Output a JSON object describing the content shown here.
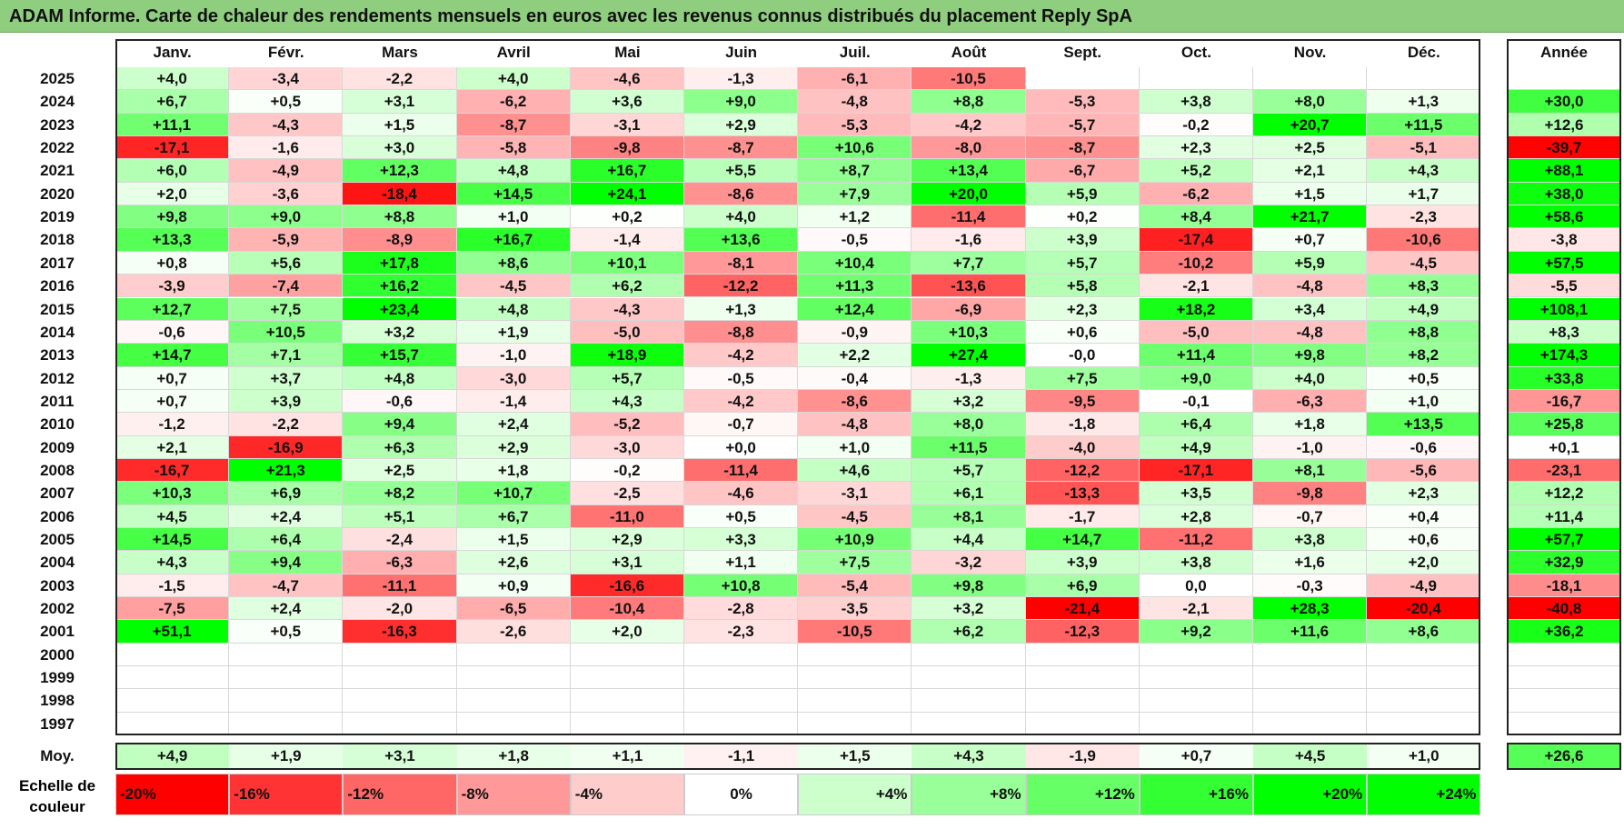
{
  "title": "ADAM Informe. Carte de chaleur des rendements mensuels en euros avec les revenus connus distribués du placement Reply SpA",
  "months": [
    "Janv.",
    "Févr.",
    "Mars",
    "Avril",
    "Mai",
    "Juin",
    "Juil.",
    "Août",
    "Sept.",
    "Oct.",
    "Nov.",
    "Déc."
  ],
  "year_header": "Année",
  "avg_label": "Moy.",
  "scale_label": "Echelle de couleur",
  "colors": {
    "neg_max": "#ff0000",
    "pos_max": "#00ff00",
    "zero": "#ffffff",
    "header_bg": "#8fce7f"
  },
  "chart_data": {
    "type": "heatmap",
    "title": "ADAM Informe. Carte de chaleur des rendements mensuels en euros avec les revenus connus distribués du placement Reply SpA",
    "columns": [
      "Janv.",
      "Févr.",
      "Mars",
      "Avril",
      "Mai",
      "Juin",
      "Juil.",
      "Août",
      "Sept.",
      "Oct.",
      "Nov.",
      "Déc."
    ],
    "rows": [
      {
        "year": "2025",
        "values": [
          "+4,0",
          "-3,4",
          "-2,2",
          "+4,0",
          "-4,6",
          "-1,3",
          "-6,1",
          "-10,5",
          "",
          "",
          "",
          ""
        ],
        "total": ""
      },
      {
        "year": "2024",
        "values": [
          "+6,7",
          "+0,5",
          "+3,1",
          "-6,2",
          "+3,6",
          "+9,0",
          "-4,8",
          "+8,8",
          "-5,3",
          "+3,8",
          "+8,0",
          "+1,3"
        ],
        "total": "+30,0"
      },
      {
        "year": "2023",
        "values": [
          "+11,1",
          "-4,3",
          "+1,5",
          "-8,7",
          "-3,1",
          "+2,9",
          "-5,3",
          "-4,2",
          "-5,7",
          "-0,2",
          "+20,7",
          "+11,5"
        ],
        "total": "+12,6"
      },
      {
        "year": "2022",
        "values": [
          "-17,1",
          "-1,6",
          "+3,0",
          "-5,8",
          "-9,8",
          "-8,7",
          "+10,6",
          "-8,0",
          "-8,7",
          "+2,3",
          "+2,5",
          "-5,1"
        ],
        "total": "-39,7"
      },
      {
        "year": "2021",
        "values": [
          "+6,0",
          "-4,9",
          "+12,3",
          "+4,8",
          "+16,7",
          "+5,5",
          "+8,7",
          "+13,4",
          "-6,7",
          "+5,2",
          "+2,1",
          "+4,3"
        ],
        "total": "+88,1"
      },
      {
        "year": "2020",
        "values": [
          "+2,0",
          "-3,6",
          "-18,4",
          "+14,5",
          "+24,1",
          "-8,6",
          "+7,9",
          "+20,0",
          "+5,9",
          "-6,2",
          "+1,5",
          "+1,7"
        ],
        "total": "+38,0"
      },
      {
        "year": "2019",
        "values": [
          "+9,8",
          "+9,0",
          "+8,8",
          "+1,0",
          "+0,2",
          "+4,0",
          "+1,2",
          "-11,4",
          "+0,2",
          "+8,4",
          "+21,7",
          "-2,3"
        ],
        "total": "+58,6"
      },
      {
        "year": "2018",
        "values": [
          "+13,3",
          "-5,9",
          "-8,9",
          "+16,7",
          "-1,4",
          "+13,6",
          "-0,5",
          "-1,6",
          "+3,9",
          "-17,4",
          "+0,7",
          "-10,6"
        ],
        "total": "-3,8"
      },
      {
        "year": "2017",
        "values": [
          "+0,8",
          "+5,6",
          "+17,8",
          "+8,6",
          "+10,1",
          "-8,1",
          "+10,4",
          "+7,7",
          "+5,7",
          "-10,2",
          "+5,9",
          "-4,5"
        ],
        "total": "+57,5"
      },
      {
        "year": "2016",
        "values": [
          "-3,9",
          "-7,4",
          "+16,2",
          "-4,5",
          "+6,2",
          "-12,2",
          "+11,3",
          "-13,6",
          "+5,8",
          "-2,1",
          "-4,8",
          "+8,3"
        ],
        "total": "-5,5"
      },
      {
        "year": "2015",
        "values": [
          "+12,7",
          "+7,5",
          "+23,4",
          "+4,8",
          "-4,3",
          "+1,3",
          "+12,4",
          "-6,9",
          "+2,3",
          "+18,2",
          "+3,4",
          "+4,9"
        ],
        "total": "+108,1"
      },
      {
        "year": "2014",
        "values": [
          "-0,6",
          "+10,5",
          "+3,2",
          "+1,9",
          "-5,0",
          "-8,8",
          "-0,9",
          "+10,3",
          "+0,6",
          "-5,0",
          "-4,8",
          "+8,8"
        ],
        "total": "+8,3"
      },
      {
        "year": "2013",
        "values": [
          "+14,7",
          "+7,1",
          "+15,7",
          "-1,0",
          "+18,9",
          "-4,2",
          "+2,2",
          "+27,4",
          "-0,0",
          "+11,4",
          "+9,8",
          "+8,2"
        ],
        "total": "+174,3"
      },
      {
        "year": "2012",
        "values": [
          "+0,7",
          "+3,7",
          "+4,8",
          "-3,0",
          "+5,7",
          "-0,5",
          "-0,4",
          "-1,3",
          "+7,5",
          "+9,0",
          "+4,0",
          "+0,5"
        ],
        "total": "+33,8"
      },
      {
        "year": "2011",
        "values": [
          "+0,7",
          "+3,9",
          "-0,6",
          "-1,4",
          "+4,3",
          "-4,2",
          "-8,6",
          "+3,2",
          "-9,5",
          "-0,1",
          "-6,3",
          "+1,0"
        ],
        "total": "-16,7"
      },
      {
        "year": "2010",
        "values": [
          "-1,2",
          "-2,2",
          "+9,4",
          "+2,4",
          "-5,2",
          "-0,7",
          "-4,8",
          "+8,0",
          "-1,8",
          "+6,4",
          "+1,8",
          "+13,5"
        ],
        "total": "+25,8"
      },
      {
        "year": "2009",
        "values": [
          "+2,1",
          "-16,9",
          "+6,3",
          "+2,9",
          "-3,0",
          "+0,0",
          "+1,0",
          "+11,5",
          "-4,0",
          "+4,9",
          "-1,0",
          "-0,6"
        ],
        "total": "+0,1"
      },
      {
        "year": "2008",
        "values": [
          "-16,7",
          "+21,3",
          "+2,5",
          "+1,8",
          "-0,2",
          "-11,4",
          "+4,6",
          "+5,7",
          "-12,2",
          "-17,1",
          "+8,1",
          "-5,6"
        ],
        "total": "-23,1"
      },
      {
        "year": "2007",
        "values": [
          "+10,3",
          "+6,9",
          "+8,2",
          "+10,7",
          "-2,5",
          "-4,6",
          "-3,1",
          "+6,1",
          "-13,3",
          "+3,5",
          "-9,8",
          "+2,3"
        ],
        "total": "+12,2"
      },
      {
        "year": "2006",
        "values": [
          "+4,5",
          "+2,4",
          "+5,1",
          "+6,7",
          "-11,0",
          "+0,5",
          "-4,5",
          "+8,1",
          "-1,7",
          "+2,8",
          "-0,7",
          "+0,4"
        ],
        "total": "+11,4"
      },
      {
        "year": "2005",
        "values": [
          "+14,5",
          "+6,4",
          "-2,4",
          "+1,5",
          "+2,9",
          "+3,3",
          "+10,9",
          "+4,4",
          "+14,7",
          "-11,2",
          "+3,8",
          "+0,6"
        ],
        "total": "+57,7"
      },
      {
        "year": "2004",
        "values": [
          "+4,3",
          "+9,4",
          "-6,3",
          "+2,6",
          "+3,1",
          "+1,1",
          "+7,5",
          "-3,2",
          "+3,9",
          "+3,8",
          "+1,6",
          "+2,0"
        ],
        "total": "+32,9"
      },
      {
        "year": "2003",
        "values": [
          "-1,5",
          "-4,7",
          "-11,1",
          "+0,9",
          "-16,6",
          "+10,8",
          "-5,4",
          "+9,8",
          "+6,9",
          "0,0",
          "-0,3",
          "-4,9"
        ],
        "total": "-18,1"
      },
      {
        "year": "2002",
        "values": [
          "-7,5",
          "+2,4",
          "-2,0",
          "-6,5",
          "-10,4",
          "-2,8",
          "-3,5",
          "+3,2",
          "-21,4",
          "-2,1",
          "+28,3",
          "-20,4"
        ],
        "total": "-40,8"
      },
      {
        "year": "2001",
        "values": [
          "+51,1",
          "+0,5",
          "-16,3",
          "-2,6",
          "+2,0",
          "-2,3",
          "-10,5",
          "+6,2",
          "-12,3",
          "+9,2",
          "+11,6",
          "+8,6"
        ],
        "total": "+36,2"
      },
      {
        "year": "2000",
        "values": [
          "",
          "",
          "",
          "",
          "",
          "",
          "",
          "",
          "",
          "",
          "",
          ""
        ],
        "total": ""
      },
      {
        "year": "1999",
        "values": [
          "",
          "",
          "",
          "",
          "",
          "",
          "",
          "",
          "",
          "",
          "",
          ""
        ],
        "total": ""
      },
      {
        "year": "1998",
        "values": [
          "",
          "",
          "",
          "",
          "",
          "",
          "",
          "",
          "",
          "",
          "",
          ""
        ],
        "total": ""
      },
      {
        "year": "1997",
        "values": [
          "",
          "",
          "",
          "",
          "",
          "",
          "",
          "",
          "",
          "",
          "",
          ""
        ],
        "total": ""
      }
    ],
    "average": {
      "values": [
        "+4,9",
        "+1,9",
        "+3,1",
        "+1,8",
        "+1,1",
        "-1,1",
        "+1,5",
        "+4,3",
        "-1,9",
        "+0,7",
        "+4,5",
        "+1,0"
      ],
      "total": "+26,6"
    },
    "scale": [
      {
        "label": "-20%",
        "value": -20
      },
      {
        "label": "-16%",
        "value": -16
      },
      {
        "label": "-12%",
        "value": -12
      },
      {
        "label": "-8%",
        "value": -8
      },
      {
        "label": "-4%",
        "value": -4
      },
      {
        "label": "0%",
        "value": 0
      },
      {
        "label": "+4%",
        "value": 4
      },
      {
        "label": "+8%",
        "value": 8
      },
      {
        "label": "+12%",
        "value": 12
      },
      {
        "label": "+16%",
        "value": 16
      },
      {
        "label": "+20%",
        "value": 20
      },
      {
        "label": "+24%",
        "value": 24
      }
    ]
  }
}
